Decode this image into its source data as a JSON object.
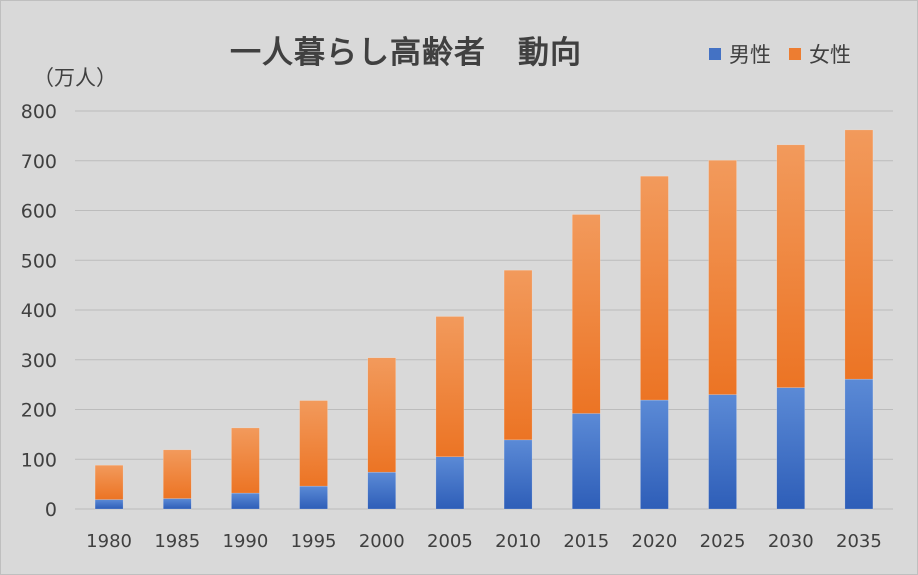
{
  "chart_data": {
    "type": "bar",
    "stacked": true,
    "title": "一人暮らし高齢者　動向",
    "unit_label": "（万人）",
    "xlabel": "",
    "ylabel": "（万人）",
    "categories": [
      "1980",
      "1985",
      "1990",
      "1995",
      "2000",
      "2005",
      "2010",
      "2015",
      "2020",
      "2025",
      "2030",
      "2035"
    ],
    "series": [
      {
        "name": "男性",
        "color": "#4472c4",
        "values": [
          19,
          21,
          32,
          46,
          74,
          105,
          139,
          192,
          219,
          230,
          244,
          261
        ]
      },
      {
        "name": "女性",
        "color": "#ed7d31",
        "values": [
          69,
          98,
          131,
          172,
          230,
          282,
          341,
          400,
          450,
          471,
          488,
          501
        ]
      }
    ],
    "ylim": [
      0,
      800
    ],
    "yticks": [
      0,
      100,
      200,
      300,
      400,
      500,
      600,
      700,
      800
    ],
    "grid": true,
    "legend_position": "top-right"
  }
}
